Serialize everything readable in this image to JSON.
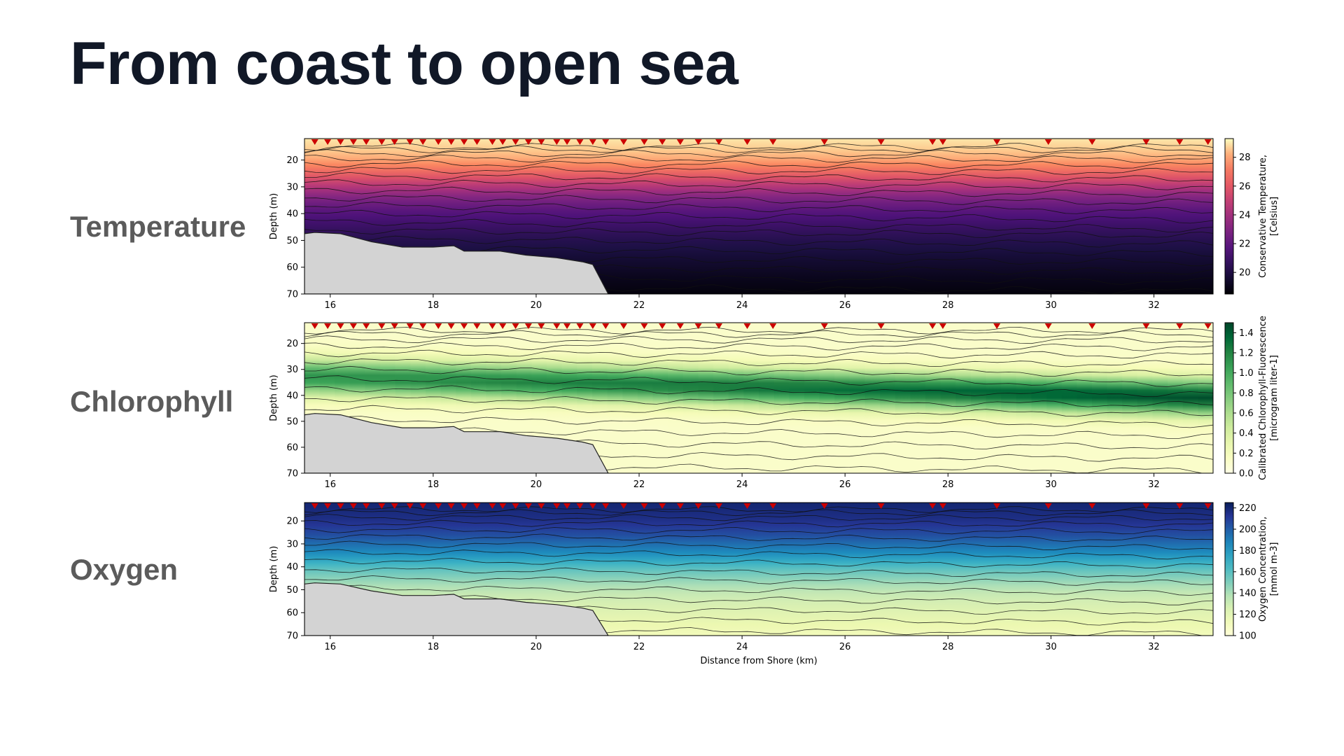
{
  "title": "From coast to open sea",
  "colors": {
    "title": "#111827",
    "row_label": "#5b5b5b",
    "bathymetry": "#d3d3d3",
    "station_marker": "#cc0000"
  },
  "chart_data": [
    {
      "type": "heatmap",
      "row_label": "Temperature",
      "title": "",
      "xlabel": "",
      "ylabel": "Depth (m)",
      "colorbar_label_lines": [
        "Conservative Temperature,",
        "[Celsius]"
      ],
      "colormap": "magma",
      "xlim": [
        15.5,
        33.15
      ],
      "ylim": [
        70,
        12
      ],
      "x_ticks": [
        16,
        18,
        20,
        22,
        24,
        26,
        28,
        30,
        32
      ],
      "y_ticks": [
        20,
        30,
        40,
        50,
        60,
        70
      ],
      "colorbar_range": [
        18.5,
        29.3
      ],
      "colorbar_ticks": [
        20,
        22,
        24,
        26,
        28
      ],
      "depth_profile_c": [
        [
          12,
          29
        ],
        [
          18,
          28.5
        ],
        [
          22,
          27.5
        ],
        [
          26,
          26
        ],
        [
          30,
          24.5
        ],
        [
          34,
          23
        ],
        [
          38,
          22
        ],
        [
          42,
          21.3
        ],
        [
          48,
          20.5
        ],
        [
          55,
          19.8
        ],
        [
          62,
          19.2
        ],
        [
          70,
          18.7
        ]
      ],
      "station_markers": true
    },
    {
      "type": "heatmap",
      "row_label": "Chlorophyll",
      "title": "",
      "xlabel": "",
      "ylabel": "Depth (m)",
      "colorbar_label_lines": [
        "Calibrated Chlorophyll-Fluorescence",
        "[microgram liter-1]"
      ],
      "colormap": "YlGn",
      "xlim": [
        15.5,
        33.15
      ],
      "ylim": [
        70,
        12
      ],
      "x_ticks": [
        16,
        18,
        20,
        22,
        24,
        26,
        28,
        30,
        32
      ],
      "y_ticks": [
        20,
        30,
        40,
        50,
        60,
        70
      ],
      "colorbar_range": [
        0,
        1.5
      ],
      "colorbar_ticks": [
        0.0,
        0.2,
        0.4,
        0.6,
        0.8,
        1.0,
        1.2,
        1.4
      ],
      "chl_max_depth_shallow_m": 33,
      "chl_max_depth_offshore_m": 41,
      "chl_max_value": 1.35,
      "station_markers": true
    },
    {
      "type": "heatmap",
      "row_label": "Oxygen",
      "title": "",
      "xlabel": "Distance from Shore (km)",
      "ylabel": "Depth (m)",
      "colorbar_label_lines": [
        "Oxygen Concentration,",
        "[mmol m-3]"
      ],
      "colormap": "YlGnBu",
      "xlim": [
        15.5,
        33.15
      ],
      "ylim": [
        70,
        12
      ],
      "x_ticks": [
        16,
        18,
        20,
        22,
        24,
        26,
        28,
        30,
        32
      ],
      "y_ticks": [
        20,
        30,
        40,
        50,
        60,
        70
      ],
      "colorbar_range": [
        100,
        225
      ],
      "colorbar_ticks": [
        100,
        120,
        140,
        160,
        180,
        200,
        220
      ],
      "depth_profile_mmol": [
        [
          12,
          220
        ],
        [
          20,
          215
        ],
        [
          26,
          205
        ],
        [
          30,
          195
        ],
        [
          34,
          185
        ],
        [
          38,
          170
        ],
        [
          42,
          155
        ],
        [
          48,
          140
        ],
        [
          55,
          128
        ],
        [
          62,
          120
        ],
        [
          70,
          112
        ]
      ],
      "station_markers": true
    }
  ],
  "bathymetry_km_m": [
    [
      15.5,
      47.5
    ],
    [
      15.7,
      47
    ],
    [
      16.2,
      47.5
    ],
    [
      16.8,
      50.5
    ],
    [
      17.4,
      52.5
    ],
    [
      18.0,
      52.5
    ],
    [
      18.4,
      52
    ],
    [
      18.6,
      54
    ],
    [
      19.3,
      54
    ],
    [
      19.8,
      55.5
    ],
    [
      20.4,
      56.5
    ],
    [
      20.9,
      58
    ],
    [
      21.1,
      59
    ],
    [
      21.4,
      70
    ]
  ],
  "station_km": [
    15.7,
    15.95,
    16.2,
    16.45,
    16.7,
    17.0,
    17.25,
    17.55,
    17.8,
    18.1,
    18.35,
    18.6,
    18.85,
    19.15,
    19.35,
    19.6,
    19.85,
    20.1,
    20.4,
    20.6,
    20.85,
    21.1,
    21.35,
    21.7,
    22.1,
    22.45,
    22.8,
    23.15,
    23.55,
    24.1,
    24.6,
    25.6,
    26.7,
    27.7,
    27.9,
    28.95,
    29.95,
    30.8,
    31.85,
    32.5,
    33.05
  ]
}
